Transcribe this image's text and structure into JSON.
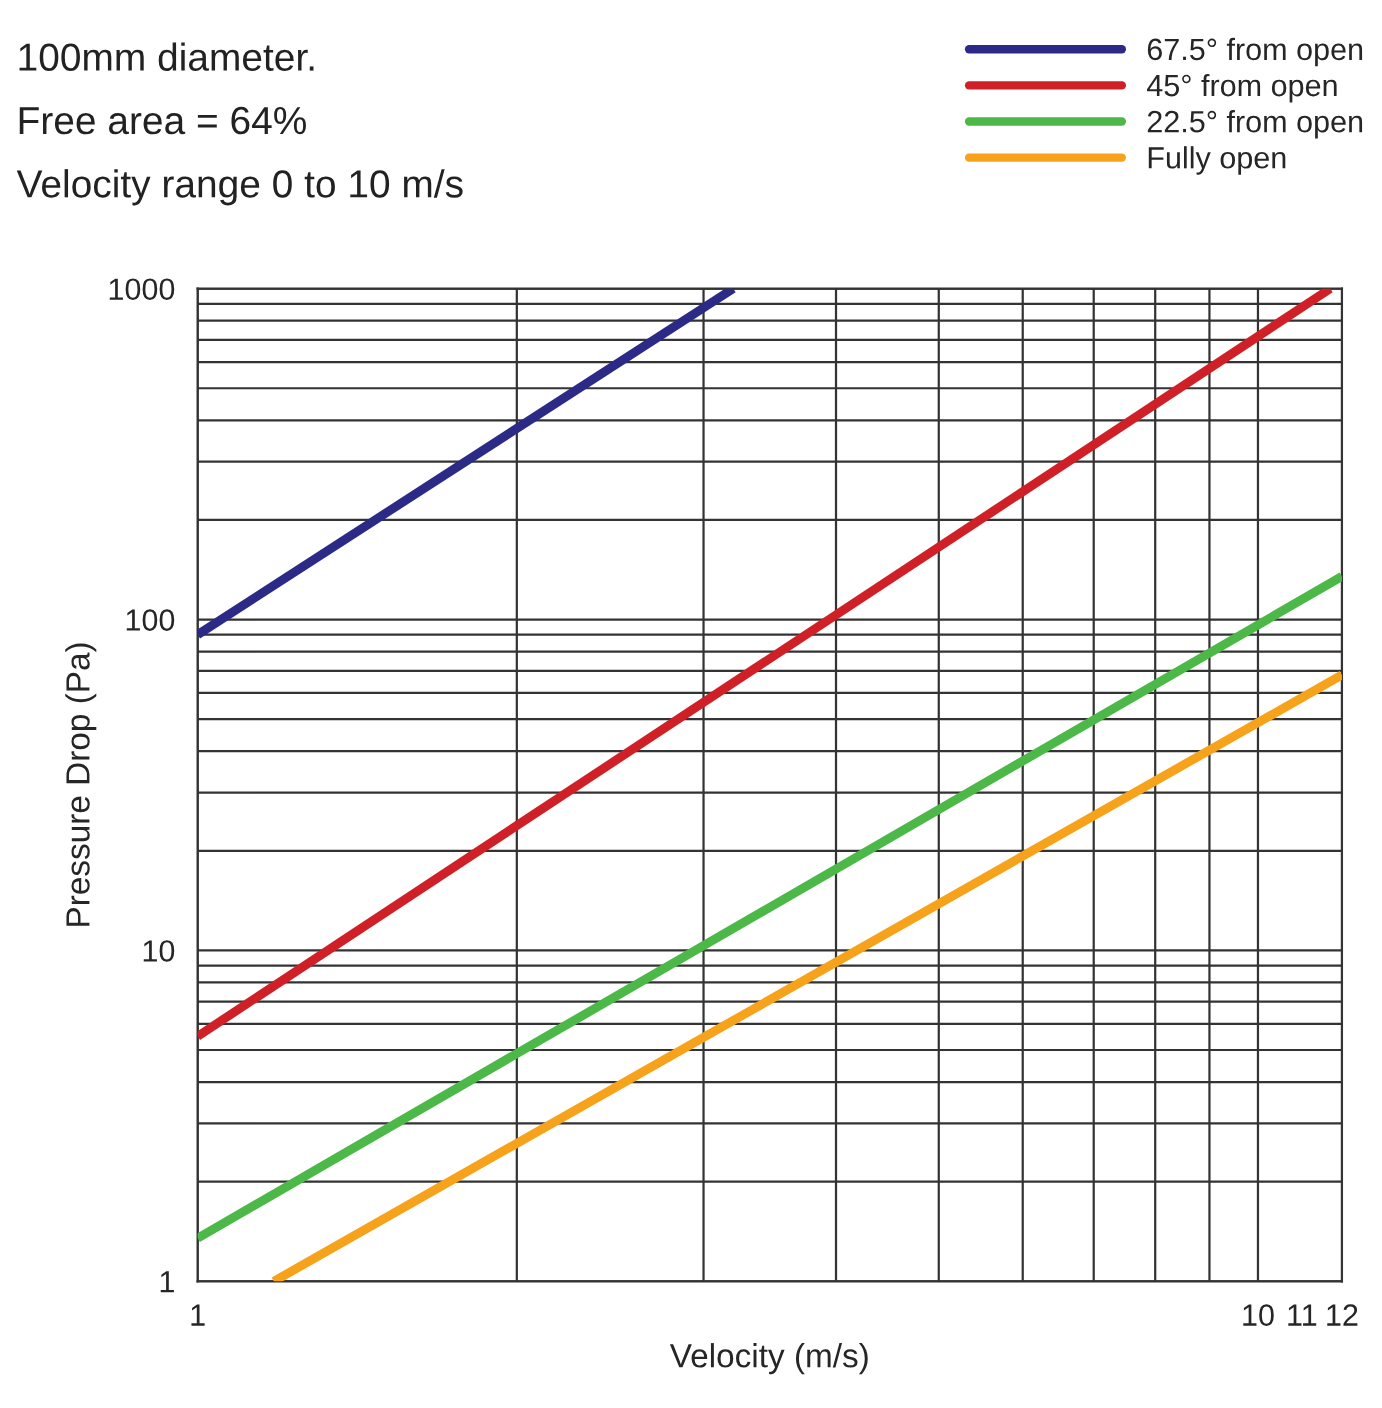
{
  "chart_data": {
    "type": "line",
    "xlabel": "Velocity (m/s)",
    "ylabel": "Pressure Drop (Pa)",
    "annotations": [
      "100mm diameter.",
      "Free area = 64%",
      "Velocity range 0 to 10 m/s"
    ],
    "series": [
      {
        "name": "67.5° from open",
        "color": "#2b2a86",
        "x": [
          1,
          3.2
        ],
        "values": [
          90,
          1000
        ]
      },
      {
        "name": "45° from open",
        "color": "#d02027",
        "x": [
          1,
          11.7
        ],
        "values": [
          5.5,
          1000
        ]
      },
      {
        "name": "22.5° from open",
        "color": "#4cb848",
        "x": [
          1,
          12
        ],
        "values": [
          1.35,
          135
        ]
      },
      {
        "name": "Fully open",
        "color": "#f7a21b",
        "x": [
          1.18,
          12
        ],
        "values": [
          1,
          68
        ]
      }
    ],
    "log": "xy",
    "xlim": [
      1,
      12
    ],
    "ylim": [
      1,
      1000
    ],
    "xticks": [
      1,
      10,
      11,
      12
    ],
    "yticks": [
      1,
      10,
      100,
      1000
    ],
    "grid": true,
    "legend": "top right",
    "line_style": "solid",
    "marker": "none"
  }
}
